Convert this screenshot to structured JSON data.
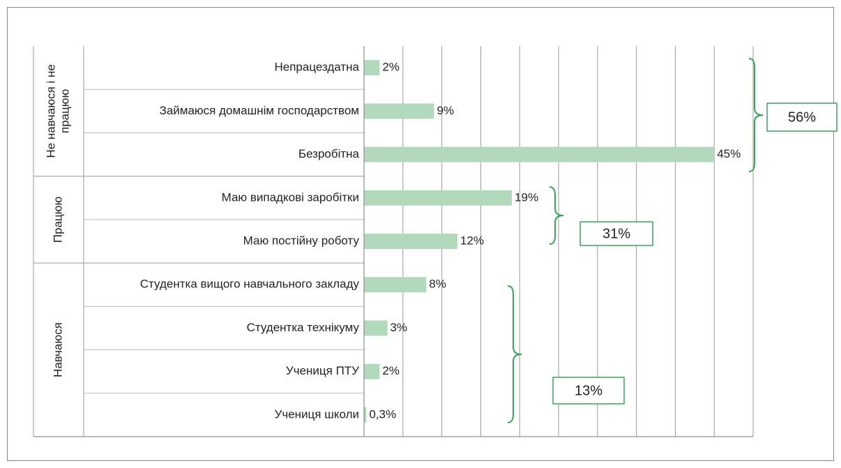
{
  "chart_data": {
    "type": "bar",
    "color": "#b3d9bd",
    "bracket_color": "#3aa35a",
    "xlim": [
      0,
      50
    ],
    "xticks": [
      5,
      10,
      15,
      20,
      25,
      30,
      35,
      40,
      45,
      50
    ],
    "grid": true,
    "groups": [
      {
        "name": [
          "Не навчаюся і не",
          "працюю"
        ],
        "total": "56%",
        "categories": [
          "Непрацездатна",
          "Займаюся домашнім господарством",
          "Безробітна"
        ],
        "values": [
          2,
          9,
          45
        ],
        "value_labels": [
          "2%",
          "9%",
          "45%"
        ]
      },
      {
        "name": [
          "Працюю"
        ],
        "total": "31%",
        "categories": [
          "Маю випадкові заробітки",
          "Маю постійну роботу"
        ],
        "values": [
          19,
          12
        ],
        "value_labels": [
          "19%",
          "12%"
        ]
      },
      {
        "name": [
          "Навчаюся"
        ],
        "total": "13%",
        "categories": [
          "Студентка вищого навчального закладу",
          "Студентка технікуму",
          "Учениця ПТУ",
          "Учениця школи"
        ],
        "values": [
          8,
          3,
          2,
          0.3
        ],
        "value_labels": [
          "8%",
          "3%",
          "2%",
          "0,3%"
        ]
      }
    ]
  }
}
